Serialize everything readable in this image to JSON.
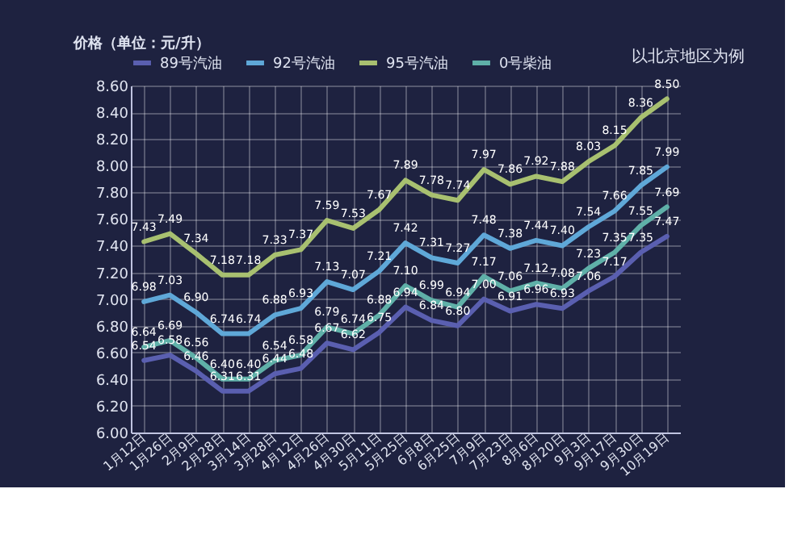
{
  "chart_data": {
    "type": "line",
    "ylabel": "价格（单位：元/升）",
    "annotations": [
      "以北京地区为例"
    ],
    "categories": [
      "1月12日",
      "1月26日",
      "2月9日",
      "2月28日",
      "3月14日",
      "3月28日",
      "4月12日",
      "4月26日",
      "4月30日",
      "5月11日",
      "5月25日",
      "6月8日",
      "6月25日",
      "7月9日",
      "7月23日",
      "8月6日",
      "8月20日",
      "9月3日",
      "9月17日",
      "9月30日",
      "10月19日"
    ],
    "series": [
      {
        "name": "89号汽油",
        "color": "#5a5fb0",
        "values": [
          6.54,
          6.58,
          6.46,
          6.31,
          6.31,
          6.44,
          6.48,
          6.67,
          6.62,
          6.75,
          6.94,
          6.84,
          6.8,
          7.0,
          6.91,
          6.96,
          6.93,
          7.06,
          7.17,
          7.35,
          7.47
        ],
        "value_labels": [
          "6.54",
          "6.58",
          "6.46",
          "6.31",
          "6.31",
          "6.44",
          "6.48",
          "6.67",
          "6.62",
          "6.75",
          "6.94",
          "6.84",
          "6.80",
          "7.00",
          "6.91",
          "6.96",
          "6.93",
          "7.06",
          "7.17",
          "7.35",
          "7.47"
        ]
      },
      {
        "name": "92号汽油",
        "color": "#5fa8d8",
        "values": [
          6.98,
          7.03,
          6.9,
          6.74,
          6.74,
          6.88,
          6.93,
          7.13,
          7.07,
          7.21,
          7.42,
          7.31,
          7.27,
          7.48,
          7.38,
          7.44,
          7.4,
          7.54,
          7.66,
          7.85,
          7.99
        ],
        "value_labels": [
          "6.98",
          "7.03",
          "6.90",
          "6.74",
          "6.74",
          "6.88",
          "6.93",
          "7.13",
          "7.07",
          "7.21",
          "7.42",
          "7.31",
          "7.27",
          "7.48",
          "7.38",
          "7.44",
          "7.40",
          "7.54",
          "7.66",
          "7.85",
          "7.99"
        ]
      },
      {
        "name": "95号汽油",
        "color": "#a8c070",
        "values": [
          7.43,
          7.49,
          7.34,
          7.18,
          7.18,
          7.33,
          7.37,
          7.59,
          7.53,
          7.67,
          7.89,
          7.78,
          7.74,
          7.97,
          7.86,
          7.92,
          7.88,
          8.03,
          8.15,
          8.36,
          8.5
        ],
        "value_labels": [
          "7.43",
          "7.49",
          "7.34",
          "7.18",
          "7.18",
          "7.33",
          "7.37",
          "7.59",
          "7.53",
          "7.67",
          "7.89",
          "7.78",
          "7.74",
          "7.97",
          "7.86",
          "7.92",
          "7.88",
          "8.03",
          "8.15",
          "8.36",
          "8.50"
        ]
      },
      {
        "name": "0号柴油",
        "color": "#5fb0a8",
        "values": [
          6.64,
          6.69,
          6.56,
          6.4,
          6.4,
          6.54,
          6.58,
          6.79,
          6.74,
          6.88,
          7.1,
          6.99,
          6.94,
          7.17,
          7.06,
          7.12,
          7.08,
          7.23,
          7.35,
          7.55,
          7.69
        ],
        "value_labels": [
          "6.64",
          "6.69",
          "6.56",
          "6.40",
          "6.40",
          "6.54",
          "6.58",
          "6.79",
          "6.74",
          "6.88",
          "7.10",
          "6.99",
          "6.94",
          "7.17",
          "7.06",
          "7.12",
          "7.08",
          "7.23",
          "7.35",
          "7.55",
          "7.69"
        ]
      }
    ],
    "ylim": [
      6.0,
      8.6
    ],
    "yticks": [
      {
        "value": 6.0,
        "label": "6.00"
      },
      {
        "value": 6.2,
        "label": "6.20"
      },
      {
        "value": 6.4,
        "label": "6.40"
      },
      {
        "value": 6.6,
        "label": "6.60"
      },
      {
        "value": 6.8,
        "label": "6.80"
      },
      {
        "value": 7.0,
        "label": "7.00"
      },
      {
        "value": 7.2,
        "label": "7.20"
      },
      {
        "value": 7.4,
        "label": "7.40"
      },
      {
        "value": 7.6,
        "label": "7.60"
      },
      {
        "value": 7.8,
        "label": "7.80"
      },
      {
        "value": 8.0,
        "label": "8.00"
      },
      {
        "value": 8.2,
        "label": "8.20"
      },
      {
        "value": 8.4,
        "label": "8.40"
      },
      {
        "value": 8.6,
        "label": "8.60"
      }
    ],
    "grid": true,
    "legend": "top",
    "marker": "none",
    "line_style": "solid"
  }
}
